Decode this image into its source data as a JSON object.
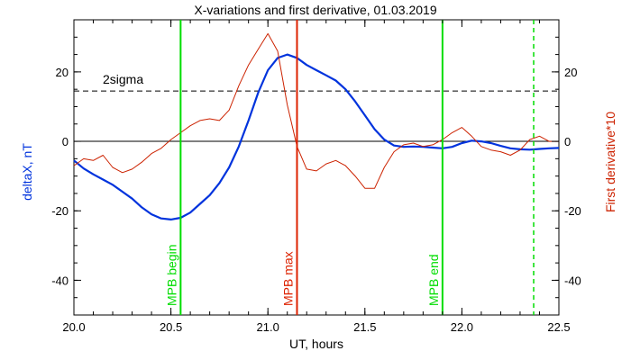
{
  "chart_data": {
    "type": "line",
    "title": "X-variations and first derivative, 01.03.2019",
    "xlabel": "UT, hours",
    "ylabel_left": "deltaX, nT",
    "ylabel_right": "First derivative*10",
    "xlim": [
      20.0,
      22.5
    ],
    "ylim": [
      -50,
      35
    ],
    "x_ticks": [
      20.0,
      20.5,
      21.0,
      21.5,
      22.0,
      22.5
    ],
    "y_ticks": [
      -40,
      -20,
      0,
      20
    ],
    "x_tick_labels": [
      "20.0",
      "20.5",
      "21.0",
      "21.5",
      "22.0",
      "22.5"
    ],
    "y_tick_labels": [
      "-40",
      "-20",
      "0",
      "20"
    ],
    "right_y_tick_labels": [
      "-40",
      "-20",
      "0",
      "20"
    ],
    "threshold": {
      "value": 14.5,
      "label": "2sigma",
      "style": "dashed",
      "color": "#000000"
    },
    "zero_line": {
      "value": 0,
      "color": "#000000"
    },
    "series": [
      {
        "name": "deltaX, nT",
        "color": "#0033dd",
        "axis": "left",
        "x": [
          20.0,
          20.05,
          20.1,
          20.15,
          20.2,
          20.25,
          20.3,
          20.35,
          20.4,
          20.45,
          20.5,
          20.55,
          20.6,
          20.65,
          20.7,
          20.75,
          20.8,
          20.85,
          20.9,
          20.95,
          21.0,
          21.05,
          21.1,
          21.15,
          21.2,
          21.25,
          21.3,
          21.35,
          21.4,
          21.45,
          21.5,
          21.55,
          21.6,
          21.65,
          21.7,
          21.75,
          21.8,
          21.85,
          21.9,
          21.95,
          22.0,
          22.05,
          22.1,
          22.15,
          22.2,
          22.25,
          22.3,
          22.35,
          22.4,
          22.45,
          22.5
        ],
        "y": [
          -5.5,
          -7.8,
          -9.5,
          -11.0,
          -12.5,
          -14.5,
          -16.5,
          -19.0,
          -21.0,
          -22.2,
          -22.5,
          -22.0,
          -20.5,
          -18.0,
          -15.5,
          -12.0,
          -7.5,
          -1.5,
          6.0,
          14.0,
          20.5,
          24.0,
          25.0,
          24.0,
          22.0,
          20.5,
          19.0,
          17.5,
          15.0,
          11.5,
          7.5,
          3.5,
          0.5,
          -1.2,
          -1.6,
          -1.5,
          -1.6,
          -1.8,
          -2.0,
          -1.6,
          -0.5,
          0.2,
          0.0,
          -0.5,
          -1.3,
          -2.0,
          -2.3,
          -2.4,
          -2.2,
          -2.0,
          -1.9
        ]
      },
      {
        "name": "First derivative*10",
        "color": "#cc2200",
        "axis": "right",
        "x": [
          20.0,
          20.05,
          20.1,
          20.15,
          20.2,
          20.25,
          20.3,
          20.35,
          20.4,
          20.45,
          20.5,
          20.55,
          20.6,
          20.65,
          20.7,
          20.75,
          20.8,
          20.85,
          20.9,
          20.95,
          21.0,
          21.05,
          21.1,
          21.15,
          21.2,
          21.25,
          21.3,
          21.35,
          21.4,
          21.45,
          21.5,
          21.55,
          21.6,
          21.65,
          21.7,
          21.75,
          21.8,
          21.85,
          21.9,
          21.95,
          22.0,
          22.05,
          22.1,
          22.15,
          22.2,
          22.25,
          22.3,
          22.35,
          22.4,
          22.45,
          22.5
        ],
        "y": [
          -7.0,
          -5.0,
          -5.5,
          -4.0,
          -7.5,
          -9.0,
          -8.0,
          -6.0,
          -3.5,
          -2.0,
          0.5,
          2.5,
          4.5,
          6.0,
          6.5,
          6.0,
          9.0,
          16.0,
          22.0,
          26.5,
          31.0,
          26.0,
          10.5,
          -1.5,
          -8.0,
          -8.5,
          -6.5,
          -5.5,
          -7.0,
          -10.0,
          -13.5,
          -13.5,
          -7.5,
          -3.0,
          -1.0,
          -0.5,
          -1.5,
          -1.0,
          0.5,
          2.5,
          4.0,
          1.5,
          -1.5,
          -2.5,
          -3.0,
          -4.0,
          -2.5,
          0.5,
          1.5,
          0.0,
          0.0
        ]
      }
    ],
    "vertical_lines": [
      {
        "x": 20.55,
        "label": "MPB begin",
        "color": "#00dd00",
        "style": "solid"
      },
      {
        "x": 21.15,
        "label": "MPB max",
        "color": "#dd2200",
        "style": "solid"
      },
      {
        "x": 21.9,
        "label": "MPB end",
        "color": "#00dd00",
        "style": "solid"
      },
      {
        "x": 22.37,
        "label": "",
        "color": "#00dd00",
        "style": "dashed"
      }
    ],
    "grid": false,
    "legend": "none"
  }
}
